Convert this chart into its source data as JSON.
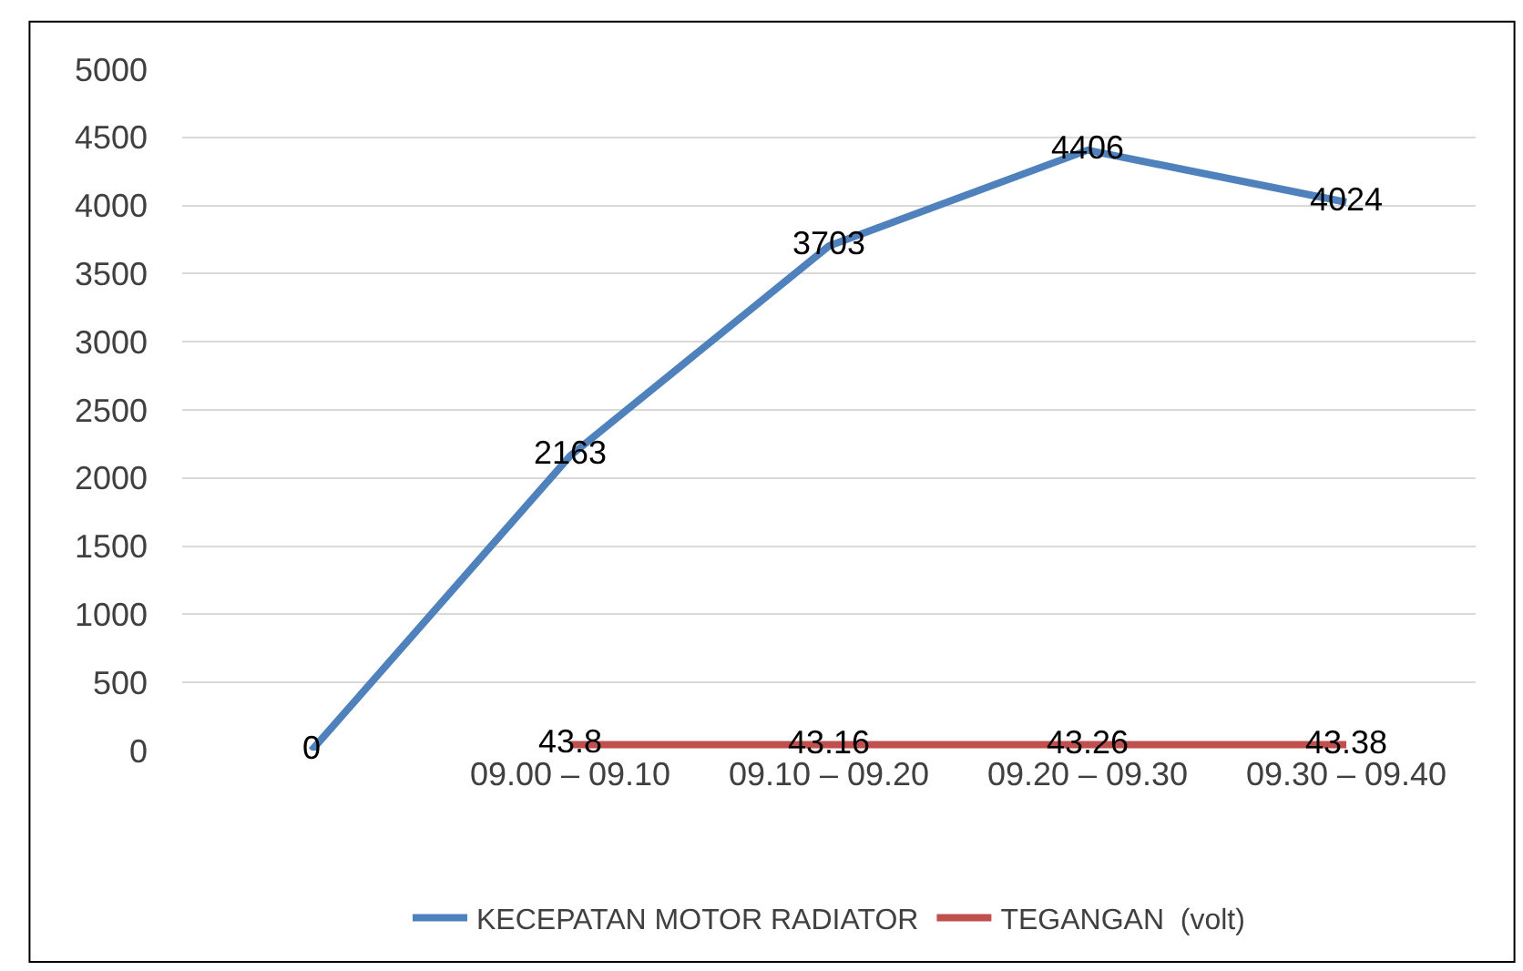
{
  "chart_data": {
    "type": "line",
    "categories": [
      null,
      "09.00 – 09.10",
      "09.10 – 09.20",
      "09.20 – 09.30",
      "09.30 – 09.40"
    ],
    "series": [
      {
        "name": "KECEPATAN MOTOR RADIATOR",
        "color": "#4f81bd",
        "values": [
          0,
          2163,
          3703,
          4406,
          4024
        ]
      },
      {
        "name": "TEGANGAN  (volt)",
        "color": "#c0504d",
        "values": [
          null,
          43.8,
          43.16,
          43.26,
          43.38
        ]
      }
    ],
    "ylim": [
      0,
      5000
    ],
    "yticks": [
      0,
      500,
      1000,
      1500,
      2000,
      2500,
      3000,
      3500,
      4000,
      4500,
      5000
    ],
    "grid": "y",
    "legend": "bottom",
    "data_labels": true,
    "marker": "none",
    "line_style": "solid"
  }
}
